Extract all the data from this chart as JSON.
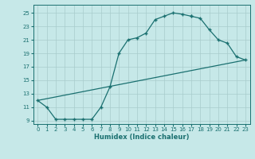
{
  "xlabel": "Humidex (Indice chaleur)",
  "bg_color": "#c6e8e8",
  "line_color": "#1a7070",
  "grid_color": "#a8cccc",
  "xlim": [
    -0.5,
    23.5
  ],
  "ylim": [
    8.5,
    26.2
  ],
  "xticks": [
    0,
    1,
    2,
    3,
    4,
    5,
    6,
    7,
    8,
    9,
    10,
    11,
    12,
    13,
    14,
    15,
    16,
    17,
    18,
    19,
    20,
    21,
    22,
    23
  ],
  "yticks": [
    9,
    11,
    13,
    15,
    17,
    19,
    21,
    23,
    25
  ],
  "curve1_x": [
    0,
    1,
    2,
    3,
    4,
    5,
    6,
    7,
    8,
    9,
    10,
    11,
    12,
    13,
    14,
    15,
    16,
    17
  ],
  "curve1_y": [
    12,
    11,
    9.2,
    9.2,
    9.2,
    9.2,
    9.2,
    11,
    14,
    19,
    21,
    21.3,
    22,
    24,
    24.5,
    25,
    24.8,
    24.5
  ],
  "curve2_x": [
    17,
    18,
    19,
    20,
    21,
    22,
    23
  ],
  "curve2_y": [
    24.5,
    24.2,
    22.5,
    21,
    20.5,
    18.5,
    18
  ],
  "curve3_x": [
    0,
    23
  ],
  "curve3_y": [
    12,
    18
  ]
}
